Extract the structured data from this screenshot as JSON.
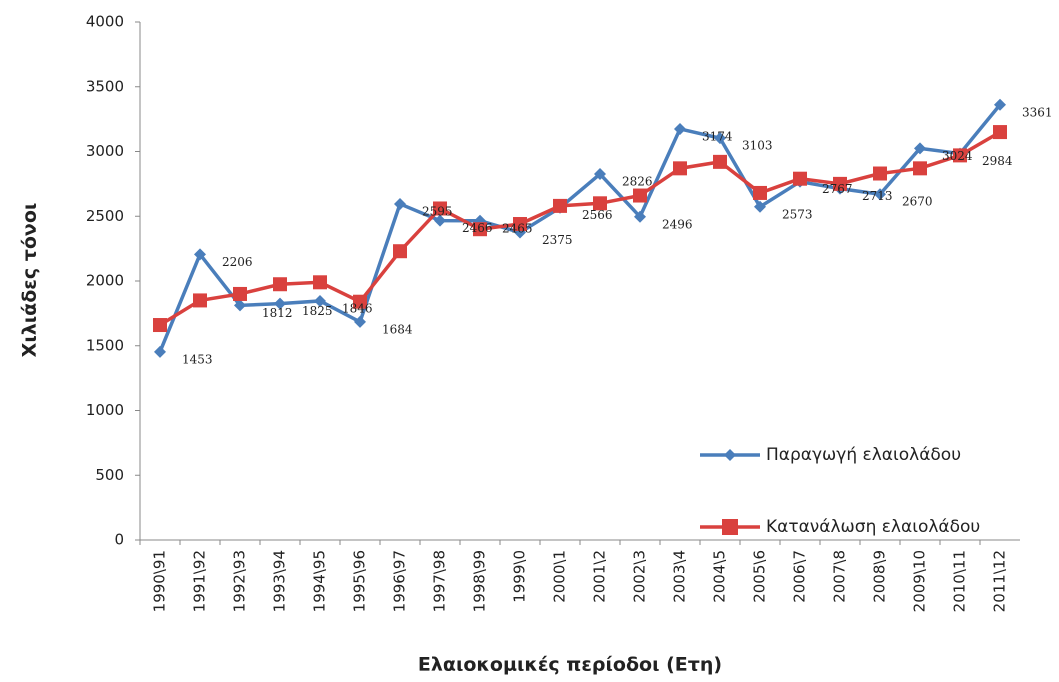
{
  "chart_data": {
    "type": "line",
    "y_label": "Χιλιάδες τόνοι",
    "x_label": "Ελαιοκομικές περίοδοι (Ετη)",
    "categories": [
      "1990\\91",
      "1991\\92",
      "1992\\93",
      "1993\\94",
      "1994\\95",
      "1995\\96",
      "1996\\97",
      "1997\\98",
      "1998\\99",
      "1999\\0",
      "2000\\1",
      "2001\\2",
      "2002\\3",
      "2003\\4",
      "2004\\5",
      "2005\\6",
      "2006\\7",
      "2007\\8",
      "2008\\9",
      "2009\\10",
      "2010\\11",
      "2011\\12"
    ],
    "series": [
      {
        "name": "Παραγωγή ελαιολάδου",
        "color": "#4a7ebb",
        "marker": "diamond",
        "values": [
          1453,
          2206,
          1812,
          1825,
          1846,
          1684,
          2595,
          2466,
          2465,
          2375,
          2566,
          2826,
          2496,
          3174,
          3103,
          2573,
          2767,
          2713,
          2670,
          3024,
          2984,
          3361
        ]
      },
      {
        "name": "Κατανάλωση ελαιολάδου",
        "color": "#d9413e",
        "marker": "square",
        "values": [
          1660,
          1850,
          1900,
          1975,
          1990,
          1840,
          2230,
          2560,
          2400,
          2440,
          2580,
          2600,
          2660,
          2870,
          2920,
          2680,
          2790,
          2750,
          2830,
          2870,
          2970,
          3150
        ]
      }
    ],
    "ylim": [
      0,
      4000
    ],
    "yticks": [
      0,
      500,
      1000,
      1500,
      2000,
      2500,
      3000,
      3500,
      4000
    ],
    "data_labels": [
      0
    ],
    "legend": "lower right",
    "grid": false
  }
}
